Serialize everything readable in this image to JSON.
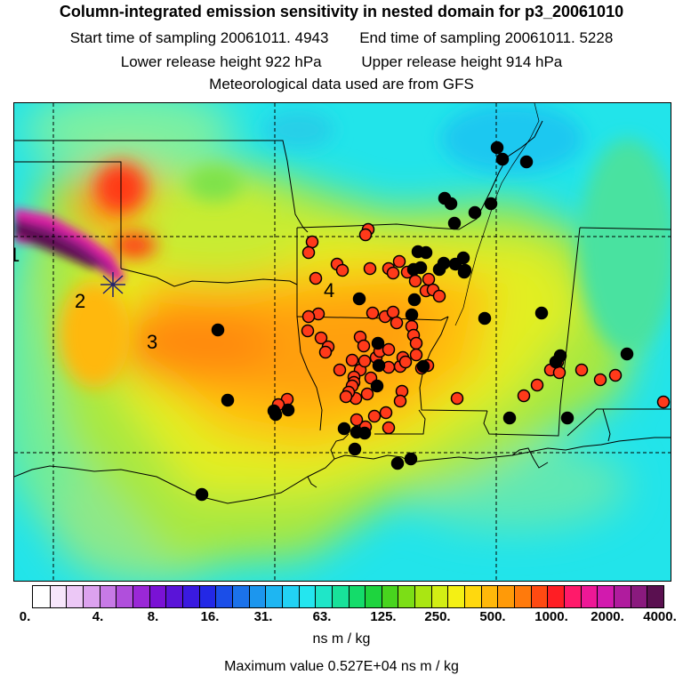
{
  "header": {
    "title": "Column-integrated emission sensitivity in nested domain for p3_20061010",
    "start_label": "Start time of sampling 20061011.  4943",
    "end_label": "End time of sampling 20061011.  5228",
    "lower_label": "Lower release height  922 hPa",
    "upper_label": "Upper release height  914 hPa",
    "met_label": "Meteorological data used are from GFS"
  },
  "map": {
    "region_labels": [
      "2",
      "3",
      "4",
      "1"
    ],
    "marker_colors": {
      "black": "#000000",
      "red": "#ff3a1a"
    }
  },
  "colorbar": {
    "labels": [
      "0.",
      "4.",
      "8.",
      "16.",
      "31.",
      "63.",
      "125.",
      "250.",
      "500.",
      "1000.",
      "2000.",
      "4000."
    ],
    "colors": [
      "#ffffff",
      "#f7e6fb",
      "#ecc8f6",
      "#dca2ef",
      "#c77ae6",
      "#b04fdc",
      "#9a28d7",
      "#7a12d5",
      "#5a14d8",
      "#3a1ae0",
      "#2328e6",
      "#1b4ee8",
      "#1b72ea",
      "#1c96ee",
      "#1eb6f2",
      "#22d2f4",
      "#24e6ef",
      "#1fe6c8",
      "#18e29a",
      "#14dc6a",
      "#1ed43e",
      "#48d41e",
      "#7cde16",
      "#aae612",
      "#d2ee14",
      "#f4f014",
      "#ffd80e",
      "#ffb80a",
      "#ff9a08",
      "#ff7a0c",
      "#ff4a12",
      "#ff1e24",
      "#ff1a6a",
      "#ee1896",
      "#d21aae",
      "#b01c9e",
      "#8a1a7e",
      "#5a1050"
    ],
    "units": "ns m / kg",
    "max_value": "Maximum value  0.527E+04 ns m / kg"
  }
}
